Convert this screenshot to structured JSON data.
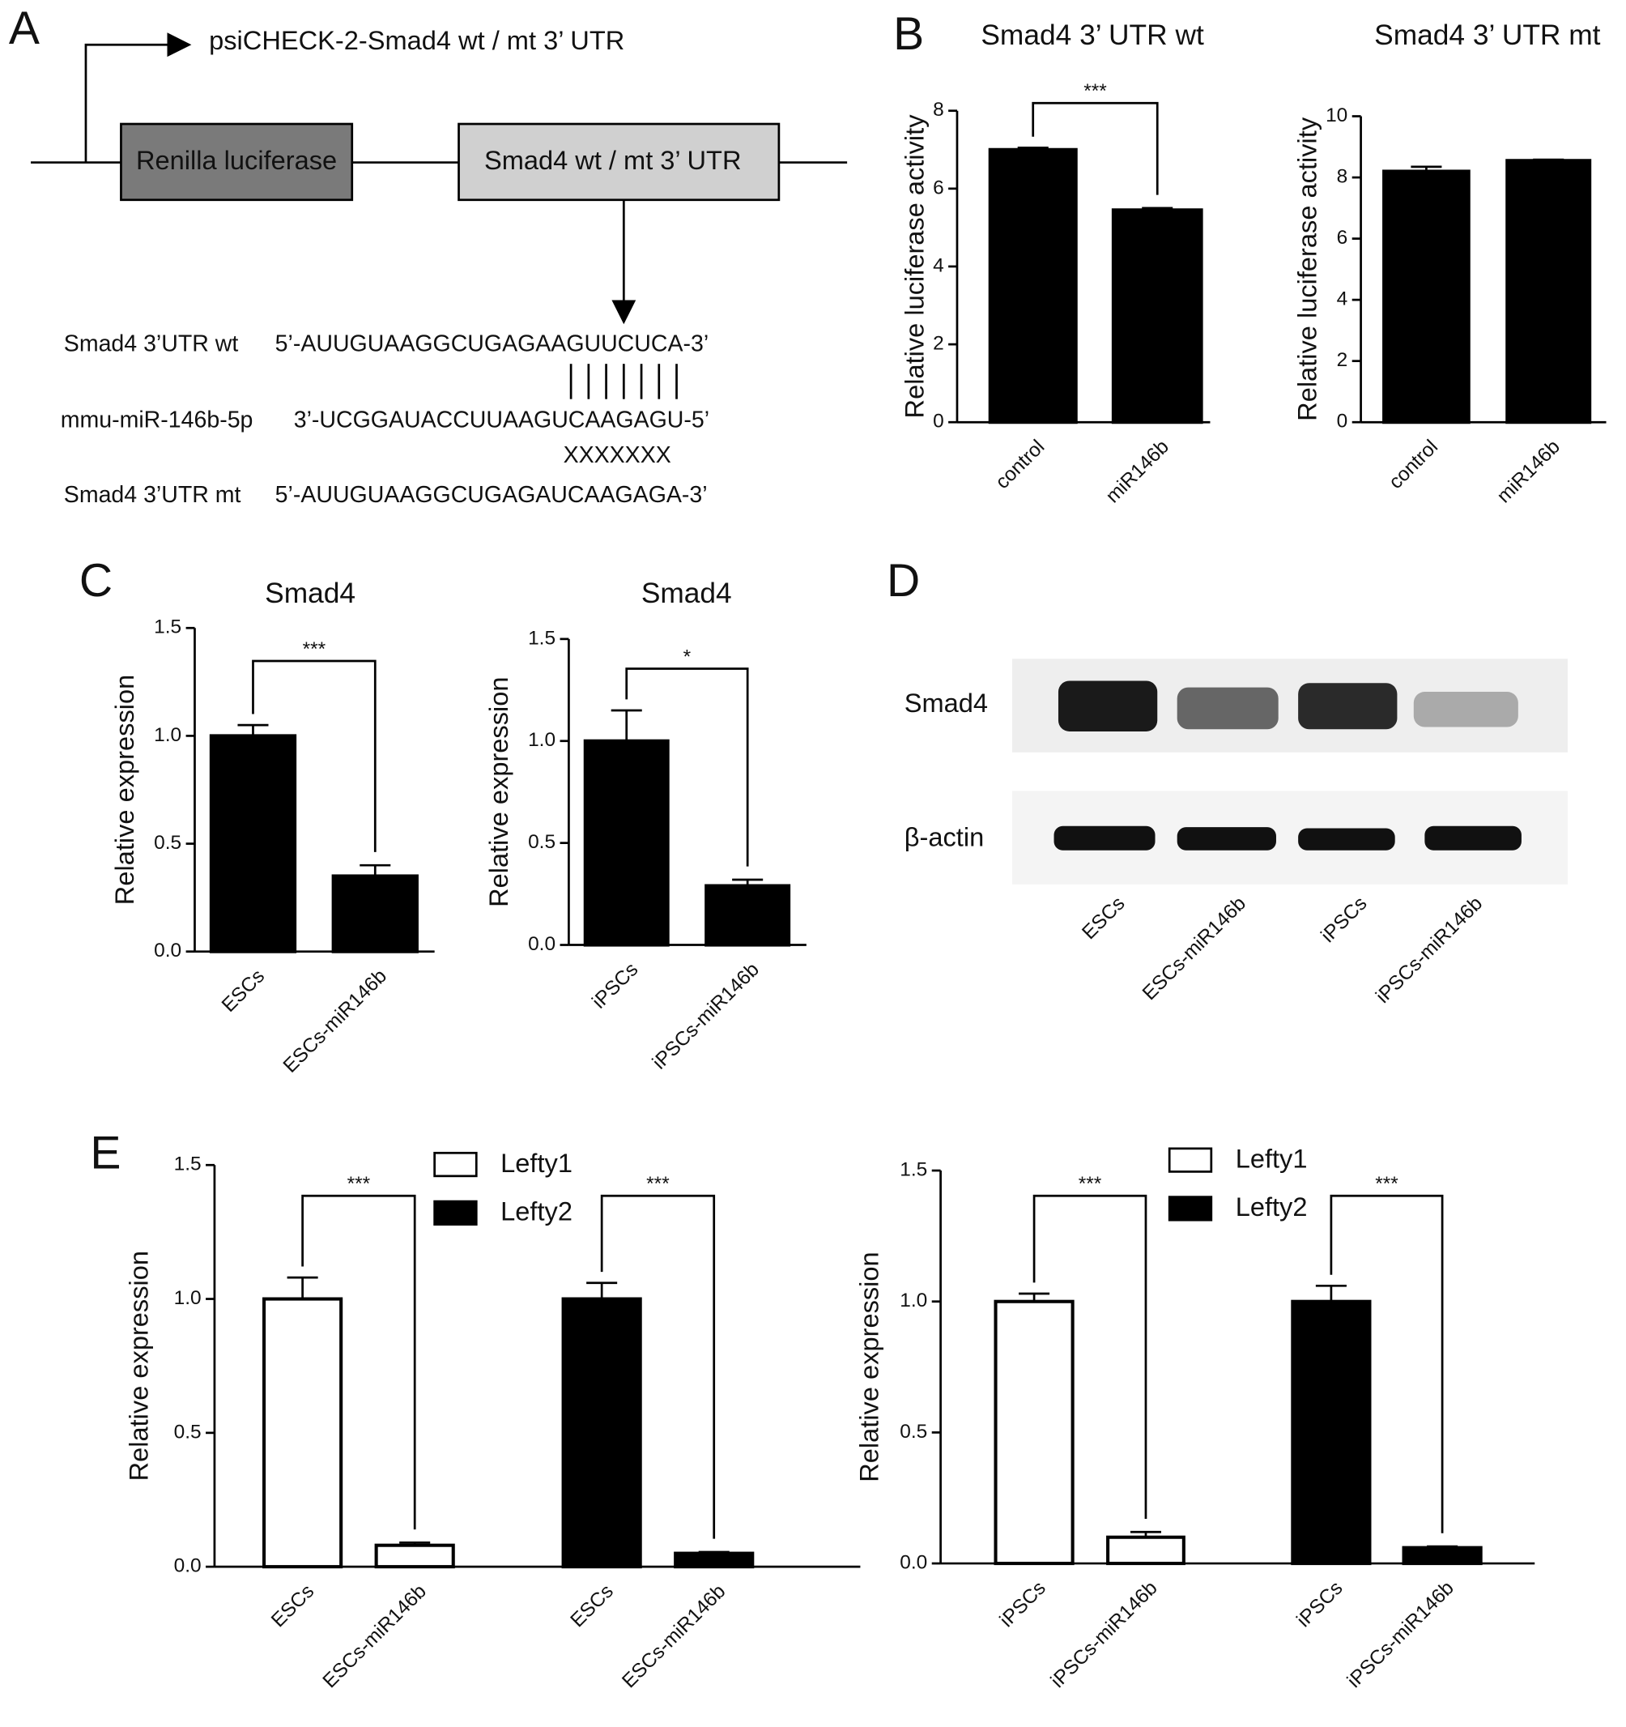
{
  "panels": [
    "A",
    "B",
    "C",
    "D",
    "E"
  ],
  "diagram": {
    "promoter": "psiCHECK-2-Smad4 wt / mt 3’ UTR",
    "box1": "Renilla luciferase",
    "box2": "Smad4 wt / mt 3’ UTR",
    "rows": [
      {
        "name": "Smad4 3’UTR wt",
        "sequence": "5’-AUUGUAAGGCUGAGAAGUUCUCA-3’"
      },
      {
        "name": "mmu-miR-146b-5p",
        "sequence": "3’-UCGGAUACCUUAAGUCAAGAGU-5’"
      },
      {
        "name": "Smad4 3’UTR mt",
        "sequence": "5’-AUUGUAAGGCUGAGAUCAAGAGA-3’"
      }
    ],
    "mismatch": "XXXXXXX"
  },
  "blot": {
    "rows": [
      "Smad4",
      "β-actin"
    ],
    "lanes": [
      "ESCs",
      "ESCs-miR146b",
      "iPSCs",
      "iPSCs-miR146b"
    ]
  },
  "chart_data": [
    {
      "type": "bar",
      "title": "Smad4 3’ UTR wt",
      "y_label": "Relative luciferase activity",
      "categories": [
        "control",
        "miR146b"
      ],
      "values": [
        7.0,
        5.45
      ],
      "errors": [
        0.05,
        0.05
      ],
      "color": "#000000",
      "ylim": [
        0,
        8
      ],
      "yticks": [
        0,
        2,
        4,
        6,
        8
      ],
      "annotation": "***"
    },
    {
      "type": "bar",
      "title": "Smad4 3’ UTR mt",
      "y_label": "Relative luciferase activity",
      "categories": [
        "control",
        "miR146b"
      ],
      "values": [
        8.2,
        8.55
      ],
      "errors": [
        0.15,
        0.03
      ],
      "color": "#000000",
      "ylim": [
        0,
        10
      ],
      "yticks": [
        0,
        2,
        4,
        6,
        8,
        10
      ]
    },
    {
      "type": "bar",
      "title": "Smad4",
      "y_label": "Relative expression",
      "categories": [
        "ESCs",
        "ESCs-miR146b"
      ],
      "values": [
        1.0,
        0.35
      ],
      "errors": [
        0.05,
        0.05
      ],
      "color": "#000000",
      "ylim": [
        0,
        1.5
      ],
      "yticks": [
        {
          "value": 0,
          "label": "0.0"
        },
        {
          "value": 0.5,
          "label": "0.5"
        },
        {
          "value": 1,
          "label": "1.0"
        },
        {
          "value": 1.5,
          "label": "1.5"
        }
      ],
      "annotation": "***"
    },
    {
      "type": "bar",
      "title": "Smad4",
      "y_label": "Relative expression",
      "categories": [
        "iPSCs",
        "iPSCs-miR146b"
      ],
      "values": [
        1.0,
        0.29
      ],
      "errors": [
        0.15,
        0.03
      ],
      "color": "#000000",
      "ylim": [
        0,
        1.5
      ],
      "yticks": [
        {
          "value": 0,
          "label": "0.0"
        },
        {
          "value": 0.5,
          "label": "0.5"
        },
        {
          "value": 1,
          "label": "1.0"
        },
        {
          "value": 1.5,
          "label": "1.5"
        }
      ],
      "annotation": "*"
    },
    {
      "type": "grouped",
      "y_label": "Relative expression",
      "categories": [
        "ESCs",
        "ESCs-miR146b"
      ],
      "series": [
        {
          "name": "Lefty1",
          "color": "#ffffff",
          "values": [
            1.0,
            0.08
          ],
          "errors": [
            0.08,
            0.01
          ],
          "annotation": "***"
        },
        {
          "name": "Lefty2",
          "color": "#000000",
          "values": [
            1.0,
            0.05
          ],
          "errors": [
            0.06,
            0.005
          ],
          "annotation": "***"
        }
      ],
      "ylim": [
        0,
        1.5
      ],
      "yticks": [
        {
          "value": 0,
          "label": "0.0"
        },
        {
          "value": 0.5,
          "label": "0.5"
        },
        {
          "value": 1,
          "label": "1.0"
        },
        {
          "value": 1.5,
          "label": "1.5"
        }
      ]
    },
    {
      "type": "grouped",
      "y_label": "Relative expression",
      "categories": [
        "iPSCs",
        "iPSCs-miR146b"
      ],
      "series": [
        {
          "name": "Lefty1",
          "color": "#ffffff",
          "values": [
            1.0,
            0.1
          ],
          "errors": [
            0.03,
            0.02
          ],
          "annotation": "***"
        },
        {
          "name": "Lefty2",
          "color": "#000000",
          "values": [
            1.0,
            0.06
          ],
          "errors": [
            0.06,
            0.005
          ],
          "annotation": "***"
        }
      ],
      "ylim": [
        0,
        1.5
      ],
      "yticks": [
        {
          "value": 0,
          "label": "0.0"
        },
        {
          "value": 0.5,
          "label": "0.5"
        },
        {
          "value": 1,
          "label": "1.0"
        },
        {
          "value": 1.5,
          "label": "1.5"
        }
      ]
    }
  ]
}
